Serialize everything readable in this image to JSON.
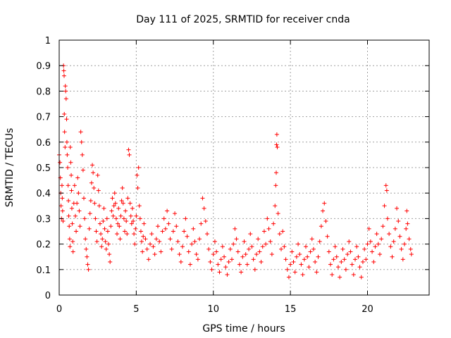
{
  "chart_data": {
    "type": "scatter",
    "title": "Day 111 of 2025, SRMTID for receiver cnda",
    "xlabel": "GPS time / hours",
    "ylabel": "SRMTID / TECUs",
    "xlim": [
      0,
      24
    ],
    "ylim": [
      0,
      1
    ],
    "xticks": [
      0,
      5,
      10,
      15,
      20
    ],
    "xtick_labels": [
      "0",
      "5",
      "10",
      "15",
      "20"
    ],
    "yticks": [
      0,
      0.1,
      0.2,
      0.3,
      0.4,
      0.5,
      0.6,
      0.7,
      0.8,
      0.9,
      1
    ],
    "ytick_labels": [
      "0",
      "0.1",
      "0.2",
      "0.3",
      "0.4",
      "0.5",
      "0.6",
      "0.7",
      "0.8",
      "0.9",
      "1"
    ],
    "grid": true,
    "marker": "+",
    "color": "#ff0000",
    "series": [
      {
        "name": "SRMTID",
        "points": [
          [
            0.0,
            0.55
          ],
          [
            0.05,
            0.52
          ],
          [
            0.08,
            0.46
          ],
          [
            0.1,
            0.4
          ],
          [
            0.12,
            0.35
          ],
          [
            0.15,
            0.3
          ],
          [
            0.18,
            0.43
          ],
          [
            0.2,
            0.38
          ],
          [
            0.22,
            0.33
          ],
          [
            0.25,
            0.29
          ],
          [
            0.28,
            0.9
          ],
          [
            0.3,
            0.88
          ],
          [
            0.32,
            0.86
          ],
          [
            0.33,
            0.71
          ],
          [
            0.35,
            0.64
          ],
          [
            0.38,
            0.58
          ],
          [
            0.4,
            0.82
          ],
          [
            0.42,
            0.8
          ],
          [
            0.45,
            0.77
          ],
          [
            0.48,
            0.69
          ],
          [
            0.5,
            0.6
          ],
          [
            0.52,
            0.55
          ],
          [
            0.55,
            0.5
          ],
          [
            0.58,
            0.43
          ],
          [
            0.6,
            0.37
          ],
          [
            0.62,
            0.31
          ],
          [
            0.65,
            0.27
          ],
          [
            0.68,
            0.22
          ],
          [
            0.7,
            0.19
          ],
          [
            0.72,
            0.58
          ],
          [
            0.75,
            0.52
          ],
          [
            0.78,
            0.47
          ],
          [
            0.8,
            0.41
          ],
          [
            0.82,
            0.34
          ],
          [
            0.85,
            0.28
          ],
          [
            0.88,
            0.21
          ],
          [
            0.9,
            0.17
          ],
          [
            0.95,
            0.36
          ],
          [
            1.0,
            0.43
          ],
          [
            1.05,
            0.31
          ],
          [
            1.1,
            0.25
          ],
          [
            1.15,
            0.36
          ],
          [
            1.2,
            0.46
          ],
          [
            1.25,
            0.4
          ],
          [
            1.3,
            0.33
          ],
          [
            1.35,
            0.27
          ],
          [
            1.4,
            0.64
          ],
          [
            1.45,
            0.6
          ],
          [
            1.5,
            0.55
          ],
          [
            1.55,
            0.49
          ],
          [
            1.6,
            0.38
          ],
          [
            1.65,
            0.3
          ],
          [
            1.7,
            0.22
          ],
          [
            1.75,
            0.18
          ],
          [
            1.8,
            0.15
          ],
          [
            1.85,
            0.12
          ],
          [
            1.9,
            0.1
          ],
          [
            1.95,
            0.26
          ],
          [
            2.0,
            0.32
          ],
          [
            2.05,
            0.37
          ],
          [
            2.1,
            0.44
          ],
          [
            2.15,
            0.51
          ],
          [
            2.2,
            0.48
          ],
          [
            2.25,
            0.42
          ],
          [
            2.3,
            0.36
          ],
          [
            2.35,
            0.3
          ],
          [
            2.4,
            0.25
          ],
          [
            2.45,
            0.21
          ],
          [
            2.5,
            0.47
          ],
          [
            2.55,
            0.41
          ],
          [
            2.6,
            0.35
          ],
          [
            2.65,
            0.28
          ],
          [
            2.7,
            0.24
          ],
          [
            2.75,
            0.19
          ],
          [
            2.8,
            0.22
          ],
          [
            2.85,
            0.29
          ],
          [
            2.9,
            0.34
          ],
          [
            2.95,
            0.26
          ],
          [
            3.0,
            0.21
          ],
          [
            3.05,
            0.18
          ],
          [
            3.1,
            0.3
          ],
          [
            3.15,
            0.25
          ],
          [
            3.2,
            0.2
          ],
          [
            3.25,
            0.16
          ],
          [
            3.3,
            0.13
          ],
          [
            3.35,
            0.27
          ],
          [
            3.4,
            0.33
          ],
          [
            3.45,
            0.38
          ],
          [
            3.5,
            0.31
          ],
          [
            3.55,
            0.35
          ],
          [
            3.6,
            0.4
          ],
          [
            3.65,
            0.36
          ],
          [
            3.7,
            0.3
          ],
          [
            3.75,
            0.24
          ],
          [
            3.8,
            0.28
          ],
          [
            3.85,
            0.34
          ],
          [
            3.9,
            0.27
          ],
          [
            3.95,
            0.22
          ],
          [
            4.0,
            0.31
          ],
          [
            4.05,
            0.37
          ],
          [
            4.1,
            0.42
          ],
          [
            4.15,
            0.36
          ],
          [
            4.2,
            0.3
          ],
          [
            4.25,
            0.25
          ],
          [
            4.3,
            0.33
          ],
          [
            4.35,
            0.29
          ],
          [
            4.4,
            0.24
          ],
          [
            4.45,
            0.38
          ],
          [
            4.5,
            0.57
          ],
          [
            4.55,
            0.55
          ],
          [
            4.6,
            0.36
          ],
          [
            4.65,
            0.31
          ],
          [
            4.7,
            0.28
          ],
          [
            4.75,
            0.34
          ],
          [
            4.8,
            0.29
          ],
          [
            4.85,
            0.24
          ],
          [
            4.9,
            0.2
          ],
          [
            4.95,
            0.26
          ],
          [
            5.0,
            0.31
          ],
          [
            5.05,
            0.47
          ],
          [
            5.1,
            0.42
          ],
          [
            5.15,
            0.5
          ],
          [
            5.2,
            0.35
          ],
          [
            5.25,
            0.3
          ],
          [
            5.3,
            0.25
          ],
          [
            5.35,
            0.21
          ],
          [
            5.4,
            0.17
          ],
          [
            5.45,
            0.23
          ],
          [
            5.5,
            0.28
          ],
          [
            5.6,
            0.22
          ],
          [
            5.7,
            0.18
          ],
          [
            5.8,
            0.14
          ],
          [
            5.9,
            0.2
          ],
          [
            6.0,
            0.24
          ],
          [
            6.1,
            0.19
          ],
          [
            6.2,
            0.16
          ],
          [
            6.3,
            0.22
          ],
          [
            6.4,
            0.27
          ],
          [
            6.5,
            0.21
          ],
          [
            6.6,
            0.17
          ],
          [
            6.7,
            0.25
          ],
          [
            6.8,
            0.3
          ],
          [
            6.9,
            0.26
          ],
          [
            7.0,
            0.33
          ],
          [
            7.1,
            0.28
          ],
          [
            7.2,
            0.22
          ],
          [
            7.3,
            0.18
          ],
          [
            7.4,
            0.25
          ],
          [
            7.5,
            0.32
          ],
          [
            7.6,
            0.27
          ],
          [
            7.7,
            0.21
          ],
          [
            7.8,
            0.16
          ],
          [
            7.9,
            0.13
          ],
          [
            8.0,
            0.19
          ],
          [
            8.1,
            0.25
          ],
          [
            8.2,
            0.3
          ],
          [
            8.3,
            0.23
          ],
          [
            8.4,
            0.17
          ],
          [
            8.5,
            0.12
          ],
          [
            8.6,
            0.2
          ],
          [
            8.7,
            0.26
          ],
          [
            8.8,
            0.21
          ],
          [
            8.9,
            0.16
          ],
          [
            9.0,
            0.14
          ],
          [
            9.1,
            0.22
          ],
          [
            9.2,
            0.28
          ],
          [
            9.3,
            0.38
          ],
          [
            9.4,
            0.34
          ],
          [
            9.5,
            0.29
          ],
          [
            9.6,
            0.24
          ],
          [
            9.7,
            0.18
          ],
          [
            9.8,
            0.13
          ],
          [
            9.9,
            0.1
          ],
          [
            10.0,
            0.16
          ],
          [
            10.1,
            0.21
          ],
          [
            10.2,
            0.17
          ],
          [
            10.3,
            0.12
          ],
          [
            10.4,
            0.09
          ],
          [
            10.5,
            0.14
          ],
          [
            10.6,
            0.19
          ],
          [
            10.7,
            0.15
          ],
          [
            10.8,
            0.11
          ],
          [
            10.9,
            0.08
          ],
          [
            11.0,
            0.13
          ],
          [
            11.1,
            0.18
          ],
          [
            11.2,
            0.14
          ],
          [
            11.3,
            0.2
          ],
          [
            11.4,
            0.26
          ],
          [
            11.5,
            0.22
          ],
          [
            11.6,
            0.17
          ],
          [
            11.7,
            0.12
          ],
          [
            11.8,
            0.09
          ],
          [
            11.9,
            0.15
          ],
          [
            12.0,
            0.21
          ],
          [
            12.1,
            0.16
          ],
          [
            12.2,
            0.12
          ],
          [
            12.3,
            0.18
          ],
          [
            12.4,
            0.24
          ],
          [
            12.5,
            0.19
          ],
          [
            12.6,
            0.14
          ],
          [
            12.7,
            0.1
          ],
          [
            12.8,
            0.16
          ],
          [
            12.9,
            0.22
          ],
          [
            13.0,
            0.17
          ],
          [
            13.1,
            0.13
          ],
          [
            13.2,
            0.19
          ],
          [
            13.3,
            0.25
          ],
          [
            13.4,
            0.2
          ],
          [
            13.5,
            0.3
          ],
          [
            13.6,
            0.26
          ],
          [
            13.7,
            0.21
          ],
          [
            13.8,
            0.16
          ],
          [
            13.9,
            0.28
          ],
          [
            14.0,
            0.35
          ],
          [
            14.05,
            0.43
          ],
          [
            14.08,
            0.48
          ],
          [
            14.1,
            0.59
          ],
          [
            14.12,
            0.63
          ],
          [
            14.15,
            0.58
          ],
          [
            14.2,
            0.32
          ],
          [
            14.3,
            0.24
          ],
          [
            14.4,
            0.18
          ],
          [
            14.5,
            0.25
          ],
          [
            14.6,
            0.19
          ],
          [
            14.7,
            0.14
          ],
          [
            14.8,
            0.1
          ],
          [
            14.9,
            0.07
          ],
          [
            15.0,
            0.12
          ],
          [
            15.1,
            0.17
          ],
          [
            15.2,
            0.13
          ],
          [
            15.3,
            0.09
          ],
          [
            15.4,
            0.15
          ],
          [
            15.5,
            0.2
          ],
          [
            15.6,
            0.16
          ],
          [
            15.7,
            0.12
          ],
          [
            15.8,
            0.08
          ],
          [
            15.9,
            0.14
          ],
          [
            16.0,
            0.19
          ],
          [
            16.1,
            0.15
          ],
          [
            16.2,
            0.11
          ],
          [
            16.3,
            0.17
          ],
          [
            16.4,
            0.22
          ],
          [
            16.5,
            0.18
          ],
          [
            16.6,
            0.13
          ],
          [
            16.7,
            0.09
          ],
          [
            16.8,
            0.15
          ],
          [
            16.9,
            0.21
          ],
          [
            17.0,
            0.27
          ],
          [
            17.1,
            0.33
          ],
          [
            17.2,
            0.36
          ],
          [
            17.3,
            0.29
          ],
          [
            17.4,
            0.23
          ],
          [
            17.5,
            0.17
          ],
          [
            17.6,
            0.12
          ],
          [
            17.7,
            0.08
          ],
          [
            17.8,
            0.14
          ],
          [
            17.9,
            0.19
          ],
          [
            18.0,
            0.15
          ],
          [
            18.1,
            0.11
          ],
          [
            18.2,
            0.07
          ],
          [
            18.3,
            0.13
          ],
          [
            18.4,
            0.18
          ],
          [
            18.5,
            0.14
          ],
          [
            18.6,
            0.1
          ],
          [
            18.7,
            0.16
          ],
          [
            18.8,
            0.21
          ],
          [
            18.9,
            0.17
          ],
          [
            19.0,
            0.12
          ],
          [
            19.1,
            0.08
          ],
          [
            19.2,
            0.14
          ],
          [
            19.3,
            0.19
          ],
          [
            19.4,
            0.15
          ],
          [
            19.5,
            0.11
          ],
          [
            19.6,
            0.07
          ],
          [
            19.7,
            0.13
          ],
          [
            19.8,
            0.18
          ],
          [
            19.9,
            0.14
          ],
          [
            20.0,
            0.2
          ],
          [
            20.1,
            0.26
          ],
          [
            20.2,
            0.21
          ],
          [
            20.3,
            0.17
          ],
          [
            20.4,
            0.13
          ],
          [
            20.5,
            0.19
          ],
          [
            20.6,
            0.24
          ],
          [
            20.7,
            0.2
          ],
          [
            20.8,
            0.16
          ],
          [
            20.9,
            0.22
          ],
          [
            21.0,
            0.27
          ],
          [
            21.1,
            0.35
          ],
          [
            21.2,
            0.43
          ],
          [
            21.25,
            0.41
          ],
          [
            21.3,
            0.3
          ],
          [
            21.4,
            0.24
          ],
          [
            21.5,
            0.19
          ],
          [
            21.6,
            0.15
          ],
          [
            21.7,
            0.21
          ],
          [
            21.8,
            0.26
          ],
          [
            21.9,
            0.34
          ],
          [
            22.0,
            0.29
          ],
          [
            22.1,
            0.23
          ],
          [
            22.2,
            0.18
          ],
          [
            22.3,
            0.14
          ],
          [
            22.4,
            0.2
          ],
          [
            22.5,
            0.26
          ],
          [
            22.55,
            0.33
          ],
          [
            22.6,
            0.28
          ],
          [
            22.7,
            0.22
          ],
          [
            22.8,
            0.18
          ],
          [
            22.85,
            0.16
          ]
        ]
      }
    ]
  }
}
